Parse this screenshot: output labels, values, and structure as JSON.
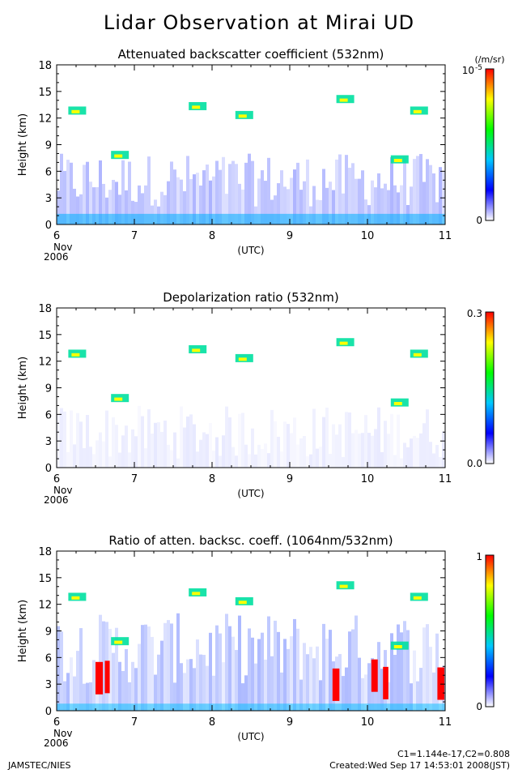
{
  "figure": {
    "title": "Lidar Observation at Mirai UD",
    "credit": "JAMSTEC/NIES",
    "constants": "C1=1.144e-17,C2=0.808",
    "created": "Created:Wed Sep 17 14:53:01 2008(JST)"
  },
  "chart_data": [
    {
      "type": "heatmap",
      "title": "Attenuated backscatter coefficient (532nm)",
      "ylabel": "Height (km)",
      "xlabel": "(UTC)",
      "x_ticks": [
        "6",
        "7",
        "8",
        "9",
        "10",
        "11"
      ],
      "x_start_date": [
        "Nov",
        "2006"
      ],
      "y_ticks": [
        "0",
        "3",
        "6",
        "9",
        "12",
        "15",
        "18"
      ],
      "xlim": [
        6,
        11
      ],
      "ylim": [
        0,
        18
      ],
      "colorbar": {
        "min_label": "0",
        "max_label": "10",
        "max_exponent": "-5",
        "unit": "(/m/sr)"
      }
    },
    {
      "type": "heatmap",
      "title": "Depolarization ratio (532nm)",
      "ylabel": "Height (km)",
      "xlabel": "(UTC)",
      "x_ticks": [
        "6",
        "7",
        "8",
        "9",
        "10",
        "11"
      ],
      "x_start_date": [
        "Nov",
        "2006"
      ],
      "y_ticks": [
        "0",
        "3",
        "6",
        "9",
        "12",
        "15",
        "18"
      ],
      "xlim": [
        6,
        11
      ],
      "ylim": [
        0,
        18
      ],
      "colorbar": {
        "min_label": "0.0",
        "max_label": "0.3"
      }
    },
    {
      "type": "heatmap",
      "title": "Ratio of atten. backsc. coeff. (1064nm/532nm)",
      "ylabel": "Height (km)",
      "xlabel": "(UTC)",
      "x_ticks": [
        "6",
        "7",
        "8",
        "9",
        "10",
        "11"
      ],
      "x_start_date": [
        "Nov",
        "2006"
      ],
      "y_ticks": [
        "0",
        "3",
        "6",
        "9",
        "12",
        "15",
        "18"
      ],
      "xlim": [
        6,
        11
      ],
      "ylim": [
        0,
        18
      ],
      "colorbar": {
        "min_label": "0",
        "max_label": "1"
      }
    }
  ],
  "colormap": [
    "#ffffff",
    "#0000ff",
    "#00c8ff",
    "#00ff00",
    "#ffff00",
    "#ff0000"
  ]
}
